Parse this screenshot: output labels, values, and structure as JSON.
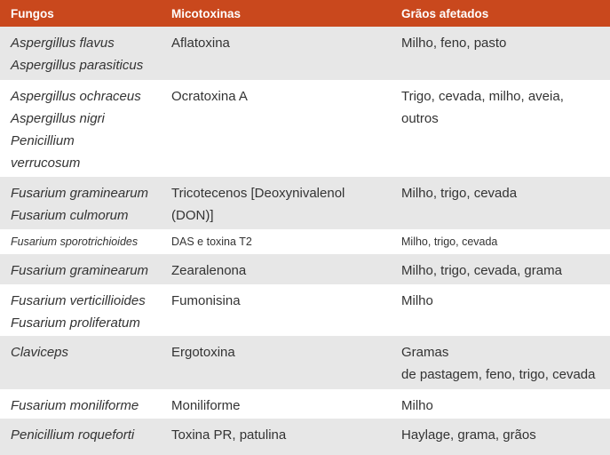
{
  "table": {
    "header": [
      "Fungos",
      "Micotoxinas",
      "Grãos afetados"
    ],
    "rows": [
      [
        [
          "Aspergillus flavus",
          "Aspergillus parasiticus"
        ],
        [
          "Aflatoxina"
        ],
        [
          "Milho, feno, pasto"
        ]
      ],
      [
        [
          "Aspergillus ochraceus",
          "Aspergillus nigri",
          "Penicillium",
          "verrucosum"
        ],
        [
          "Ocratoxina A"
        ],
        [
          "Trigo, cevada, milho, aveia,",
          "outros"
        ]
      ],
      [
        [
          "Fusarium graminearum",
          "Fusarium culmorum"
        ],
        [
          "Tricotecenos [Deoxynivalenol",
          "(DON)]"
        ],
        [
          "Milho, trigo, cevada"
        ]
      ],
      [
        [
          "Fusarium sporotrichioides"
        ],
        [
          "DAS e toxina T2"
        ],
        [
          "Milho, trigo, cevada"
        ]
      ],
      [
        [
          "Fusarium graminearum"
        ],
        [
          "Zearalenona"
        ],
        [
          "Milho, trigo, cevada, grama"
        ]
      ],
      [
        [
          "Fusarium verticillioides",
          "Fusarium proliferatum"
        ],
        [
          "Fumonisina"
        ],
        [
          "Milho"
        ]
      ],
      [
        [
          "Claviceps"
        ],
        [
          "Ergotoxina"
        ],
        [
          "Gramas",
          "de pastagem, feno, trigo, cevada"
        ]
      ],
      [
        [
          "Fusarium moniliforme"
        ],
        [
          "Moniliforme"
        ],
        [
          "Milho"
        ]
      ],
      [
        [
          "Penicillium roqueforti"
        ],
        [
          "Toxina PR, patulina"
        ],
        [
          "Haylage, grama, grãos"
        ]
      ]
    ]
  }
}
